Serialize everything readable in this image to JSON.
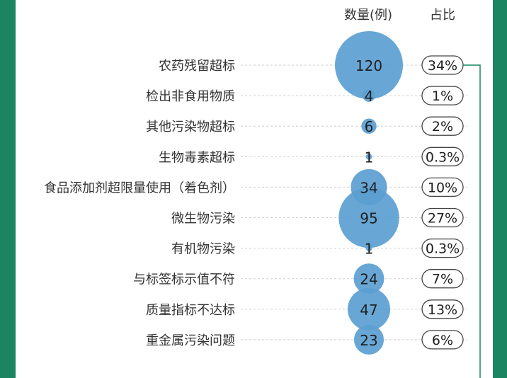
{
  "header": {
    "count_label": "数量(例)",
    "share_label": "占比"
  },
  "colors": {
    "background": "#1a8560",
    "bubble": "#5b9fd1",
    "text": "#1f1f1f",
    "dashed_line": "#cfcfcf"
  },
  "chart_data": {
    "type": "bubble",
    "categories": [
      "农药残留超标",
      "检出非食用物质",
      "其他污染物超标",
      "生物毒素超标",
      "食品添加剂超限量使用（着色剂）",
      "微生物污染",
      "有机物污染",
      "与标签标示值不符",
      "质量指标不达标",
      "重金属污染问题"
    ],
    "series": [
      {
        "name": "数量(例)",
        "values": [
          120,
          4,
          6,
          1,
          34,
          95,
          1,
          24,
          47,
          23
        ]
      },
      {
        "name": "占比",
        "values": [
          "34%",
          "1%",
          "2%",
          "0.3%",
          "10%",
          "27%",
          "0.3%",
          "7%",
          "13%",
          "6%"
        ]
      }
    ]
  }
}
